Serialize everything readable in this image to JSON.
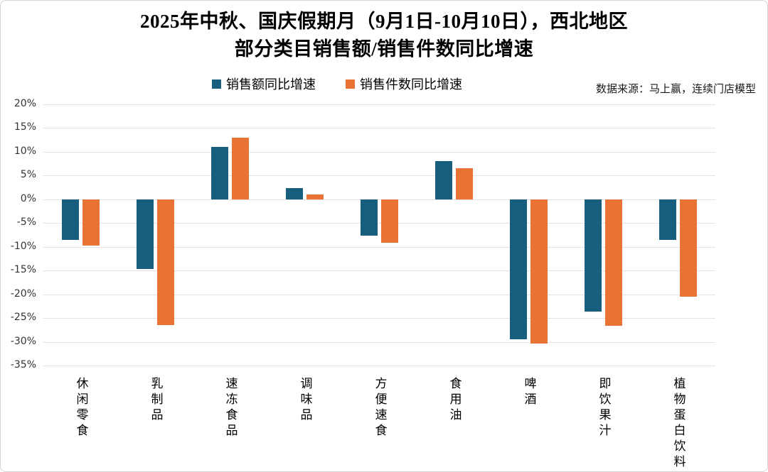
{
  "title": {
    "line1": "2025年中秋、国庆假期月（9月1日-10月10日），西北地区",
    "line2": "部分类目销售额/销售件数同比增速"
  },
  "source_note": "数据来源：马上赢，连续门店模型",
  "chart_data": {
    "type": "bar",
    "title": "2025年中秋、国庆假期月（9月1日-10月10日），西北地区部分类目销售额/销售件数同比增速",
    "categories": [
      "休闲零食",
      "乳制品",
      "速冻食品",
      "调味品",
      "方便速食",
      "食用油",
      "啤酒",
      "即饮果汁",
      "植物蛋白饮料"
    ],
    "series": [
      {
        "name": "销售额同比增速",
        "color": "#185E7E",
        "values": [
          -8.6,
          -14.7,
          11.1,
          2.3,
          -7.7,
          8.1,
          -29.4,
          -23.7,
          -8.5
        ]
      },
      {
        "name": "销售件数同比增速",
        "color": "#E87335",
        "values": [
          -9.7,
          -26.5,
          13.0,
          1.0,
          -9.1,
          6.5,
          -30.4,
          -26.7,
          -20.5
        ]
      }
    ],
    "xlabel": "",
    "ylabel": "",
    "unit": "%",
    "ylim": [
      -35,
      20
    ],
    "ytick_step": 5,
    "ytick_labels": [
      "20%",
      "15%",
      "10%",
      "5%",
      "0%",
      "-5%",
      "-10%",
      "-15%",
      "-20%",
      "-25%",
      "-30%",
      "-35%"
    ],
    "grid": true,
    "gridline_color": "#e3e3e3",
    "legend_position": "top-center"
  }
}
